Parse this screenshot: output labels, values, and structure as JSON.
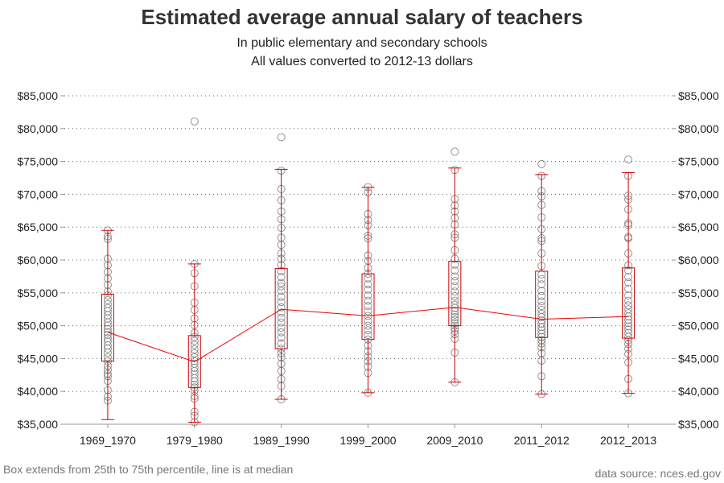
{
  "chart_data": {
    "type": "box",
    "title": "Estimated average annual salary of teachers",
    "subtitle": [
      "In public elementary and secondary schools",
      "All values converted to 2012-13 dollars"
    ],
    "xlabel": "",
    "ylabel": "",
    "ylim": [
      35000,
      85000
    ],
    "y_ticks": [
      35000,
      40000,
      45000,
      50000,
      55000,
      60000,
      65000,
      70000,
      75000,
      80000,
      85000
    ],
    "y_tick_labels": [
      "$35,000",
      "$40,000",
      "$45,000",
      "$50,000",
      "$55,000",
      "$60,000",
      "$65,000",
      "$70,000",
      "$75,000",
      "$80,000",
      "$85,000"
    ],
    "grid": "horizontal dotted",
    "categories": [
      "1969_1970",
      "1979_1980",
      "1989_1990",
      "1999_2000",
      "2009_2010",
      "2011_2012",
      "2012_2013"
    ],
    "boxes": [
      {
        "category": "1969_1970",
        "min": 35700,
        "q1": 44600,
        "median": 49000,
        "q3": 54800,
        "max": 64500
      },
      {
        "category": "1979_1980",
        "min": 35300,
        "q1": 40600,
        "median": 44500,
        "q3": 48500,
        "max": 59400
      },
      {
        "category": "1989_1990",
        "min": 38800,
        "q1": 46500,
        "median": 52500,
        "q3": 58700,
        "max": 73800
      },
      {
        "category": "1999_2000",
        "min": 39800,
        "q1": 47900,
        "median": 51500,
        "q3": 57900,
        "max": 71100
      },
      {
        "category": "2009_2010",
        "min": 41400,
        "q1": 50000,
        "median": 52800,
        "q3": 59800,
        "max": 74000
      },
      {
        "category": "2011_2012",
        "min": 39600,
        "q1": 48200,
        "median": 51000,
        "q3": 58300,
        "max": 73000
      },
      {
        "category": "2012_2013",
        "min": 39700,
        "q1": 48100,
        "median": 51400,
        "q3": 58800,
        "max": 73300
      }
    ],
    "points": [
      {
        "category": "1969_1970",
        "values": [
          38600,
          39200,
          40200,
          41600,
          42300,
          42700,
          43300,
          43900,
          44600,
          45200,
          45900,
          46500,
          47000,
          47600,
          48100,
          48600,
          49000,
          49500,
          50000,
          50500,
          51100,
          51600,
          52200,
          52700,
          53300,
          53900,
          54600,
          55200,
          56200,
          57200,
          58200,
          59200,
          60200,
          63200,
          63600,
          64500
        ]
      },
      {
        "category": "1979_1980",
        "values": [
          35300,
          36300,
          36900,
          38900,
          39300,
          40100,
          40600,
          41000,
          41500,
          42000,
          42600,
          43100,
          43600,
          44200,
          44600,
          45200,
          45800,
          46400,
          47100,
          47700,
          48300,
          48900,
          50100,
          51100,
          52400,
          53500,
          56000,
          58000,
          59400,
          81100
        ]
      },
      {
        "category": "1989_1990",
        "values": [
          38800,
          40800,
          41900,
          43100,
          44200,
          45200,
          45800,
          46500,
          47300,
          48200,
          49000,
          49700,
          50500,
          51200,
          52000,
          52800,
          53600,
          54400,
          55300,
          56000,
          56500,
          57400,
          58300,
          59200,
          60200,
          61000,
          62300,
          63400,
          64900,
          66200,
          67400,
          69100,
          70800,
          73600,
          78700
        ]
      },
      {
        "category": "1999_2000",
        "values": [
          39800,
          42800,
          43800,
          44600,
          45300,
          46100,
          47000,
          47900,
          48600,
          49300,
          50000,
          50700,
          51500,
          52200,
          53000,
          53800,
          54600,
          55500,
          56300,
          57200,
          57900,
          58800,
          59900,
          60700,
          63300,
          63700,
          65300,
          66100,
          67000,
          70300,
          71100
        ]
      },
      {
        "category": "2009_2010",
        "values": [
          41400,
          45900,
          48000,
          48700,
          49200,
          49600,
          50000,
          50400,
          50900,
          51300,
          51700,
          52200,
          52700,
          53200,
          53800,
          54500,
          55200,
          56000,
          56800,
          57500,
          58400,
          59300,
          60200,
          61500,
          63400,
          63900,
          65400,
          66400,
          67400,
          68300,
          69300,
          73700,
          76500
        ]
      },
      {
        "category": "2011_2012",
        "values": [
          39600,
          42300,
          44700,
          45800,
          46700,
          47300,
          47800,
          48300,
          48800,
          49300,
          49800,
          50300,
          50800,
          51300,
          51800,
          52400,
          53000,
          53700,
          54500,
          55300,
          56300,
          57100,
          57800,
          59100,
          61000,
          62900,
          63300,
          64700,
          66500,
          68400,
          69700,
          70500,
          72800,
          74600
        ]
      },
      {
        "category": "2012_2013",
        "values": [
          39700,
          41900,
          44400,
          45700,
          46500,
          47200,
          47800,
          48300,
          48900,
          49400,
          49900,
          50400,
          50900,
          51400,
          51900,
          52500,
          53100,
          53800,
          54600,
          55600,
          56600,
          57400,
          58400,
          59200,
          61000,
          63300,
          63500,
          65300,
          65600,
          67700,
          69200,
          69800,
          72800,
          75300
        ]
      }
    ],
    "median_line": true,
    "colors": {
      "box": "#cc0000",
      "whisker": "#cc0000",
      "median_line": "#ee0000",
      "points": "#888888",
      "grid": "#666666",
      "axis": "#999999"
    }
  },
  "footnote_left": "Box extends from 25th to 75th percentile, line is at median",
  "footnote_right": "data source: nces.ed.gov"
}
